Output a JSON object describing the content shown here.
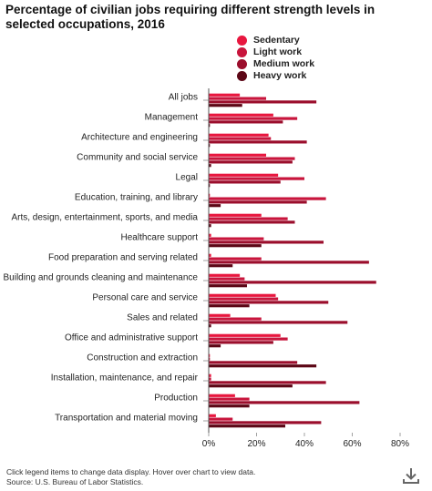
{
  "title": "Percentage of civilian jobs requiring different strength levels in selected occupations, 2016",
  "footer": {
    "note": "Click legend items to change data display. Hover over chart to view data.",
    "source": "Source: U.S. Bureau of Labor Statistics."
  },
  "download_icon": "download-icon",
  "chart_data": {
    "type": "bar",
    "orientation": "horizontal",
    "categories": [
      "All jobs",
      "Management",
      "Architecture and engineering",
      "Community and social service",
      "Legal",
      "Education, training, and library",
      "Arts, design, entertainment, sports, and media",
      "Healthcare support",
      "Food preparation and serving related",
      "Building and grounds cleaning and maintenance",
      "Personal care and service",
      "Sales and related",
      "Office and administrative support",
      "Construction and extraction",
      "Installation, maintenance, and repair",
      "Production",
      "Transportation and material moving"
    ],
    "series": [
      {
        "name": "Sedentary",
        "color": "#e8173f",
        "values": [
          13,
          27,
          25,
          24,
          29,
          0.5,
          22,
          1,
          1,
          13,
          28,
          9,
          30,
          0.5,
          1,
          11,
          3
        ]
      },
      {
        "name": "Light work",
        "color": "#c8153c",
        "values": [
          24,
          37,
          26,
          36,
          40,
          49,
          33,
          23,
          22,
          15,
          29,
          22,
          33,
          0.5,
          1,
          17,
          10
        ]
      },
      {
        "name": "Medium work",
        "color": "#9b0e2c",
        "values": [
          45,
          31,
          41,
          35,
          30,
          41,
          36,
          48,
          67,
          70,
          50,
          58,
          27,
          37,
          49,
          63,
          47
        ]
      },
      {
        "name": "Heavy work",
        "color": "#5c0716",
        "values": [
          14,
          0.5,
          0.5,
          1,
          0.5,
          5,
          1,
          22,
          10,
          16,
          17,
          1,
          5,
          45,
          35,
          17,
          32
        ]
      }
    ],
    "xlim": [
      0,
      80
    ],
    "xticks": [
      "0%",
      "20%",
      "40%",
      "60%",
      "80%"
    ],
    "grid": false,
    "legend_position": "top"
  }
}
